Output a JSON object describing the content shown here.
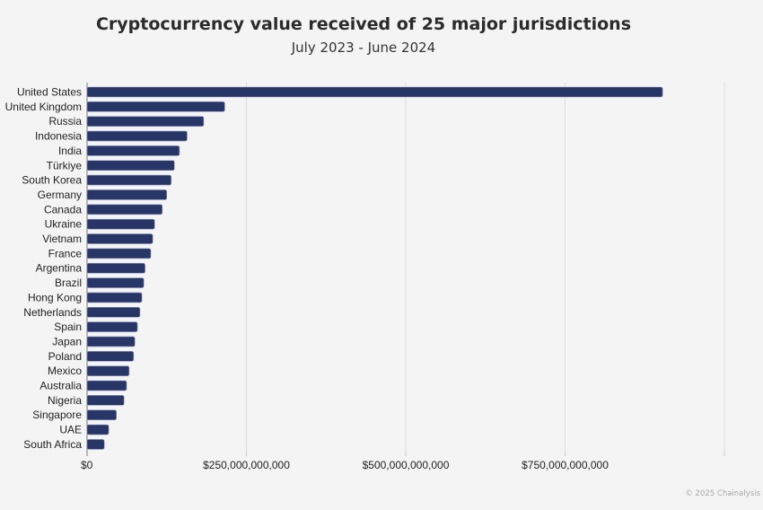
{
  "chart_data": {
    "type": "bar",
    "orientation": "horizontal",
    "title": "Cryptocurrency value received of 25 major jurisdictions",
    "subtitle": "July 2023 - June 2024",
    "xlabel": "",
    "ylabel": "",
    "xlim": [
      0,
      1000000000000
    ],
    "grid": true,
    "xticks": [
      0,
      250000000000,
      500000000000,
      750000000000,
      1000000000000
    ],
    "xtick_labels": [
      "$0",
      "$250,000,000,000",
      "$500,000,000,000",
      "$750,000,000,000",
      ""
    ],
    "categories": [
      "United States",
      "United Kingdom",
      "Russia",
      "Indonesia",
      "India",
      "Türkiye",
      "South Korea",
      "Germany",
      "Canada",
      "Ukraine",
      "Vietnam",
      "France",
      "Argentina",
      "Brazil",
      "Hong Kong",
      "Netherlands",
      "Spain",
      "Japan",
      "Poland",
      "Mexico",
      "Australia",
      "Nigeria",
      "Singapore",
      "UAE",
      "South Africa"
    ],
    "values": [
      903000000000,
      216000000000,
      183000000000,
      157000000000,
      145000000000,
      137000000000,
      132000000000,
      125000000000,
      118000000000,
      106000000000,
      103000000000,
      100000000000,
      91000000000,
      89000000000,
      86000000000,
      83000000000,
      79000000000,
      75000000000,
      73000000000,
      66000000000,
      62000000000,
      58000000000,
      46000000000,
      34000000000,
      27000000000
    ],
    "bar_color": "#283567",
    "credit": "© 2025 Chainalysis"
  }
}
